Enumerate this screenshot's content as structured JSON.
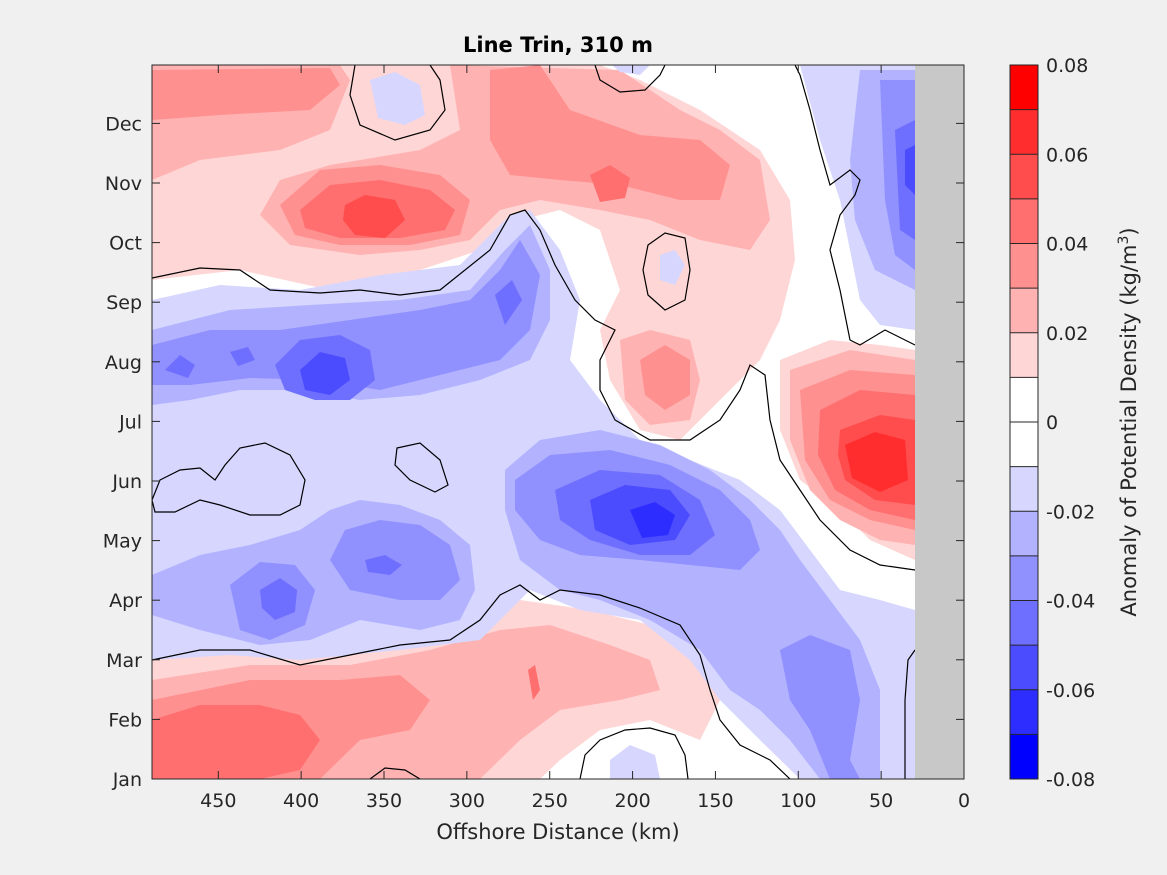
{
  "chart_data": {
    "type": "contour",
    "title": "Line Trin, 310 m",
    "xlabel": "Offshore Distance (km)",
    "xlim": [
      490,
      0
    ],
    "x_ticks": [
      450,
      400,
      350,
      300,
      250,
      200,
      150,
      100,
      50,
      0
    ],
    "y_ticks": [
      "Jan",
      "Feb",
      "Mar",
      "Apr",
      "May",
      "Jun",
      "Jul",
      "Aug",
      "Sep",
      "Oct",
      "Nov",
      "Dec"
    ],
    "colorbar": {
      "label": "Anomaly of Potential Density (kg/m",
      "label_superscript": "3",
      "label_suffix": ")",
      "clim": [
        -0.08,
        0.08
      ],
      "tick_labels": [
        "0.08",
        "0.06",
        "0.04",
        "0.02",
        "0",
        "-0.02",
        "-0.04",
        "-0.06",
        "-0.08"
      ],
      "tick_values": [
        0.08,
        0.06,
        0.04,
        0.02,
        0,
        -0.02,
        -0.04,
        -0.06,
        -0.08
      ],
      "levels": [
        0.08,
        0.07,
        0.06,
        0.05,
        0.04,
        0.03,
        0.02,
        0.01,
        0,
        -0.01,
        -0.02,
        -0.03,
        -0.04,
        -0.05,
        -0.06,
        -0.07,
        -0.08
      ],
      "colors": [
        "#ff0000",
        "#ff2d2d",
        "#ff4c4c",
        "#ff6f6f",
        "#ff9090",
        "#ffb2b2",
        "#ffd6d6",
        "#ffffff",
        "#ffffff",
        "#d6d6ff",
        "#b2b2ff",
        "#9090ff",
        "#6f6fff",
        "#4c4cff",
        "#2d2dff",
        "#0000ff"
      ]
    },
    "no_data_region": {
      "x_from": 30,
      "x_to": 0,
      "color": "#c8c8c8"
    },
    "grid": false
  }
}
